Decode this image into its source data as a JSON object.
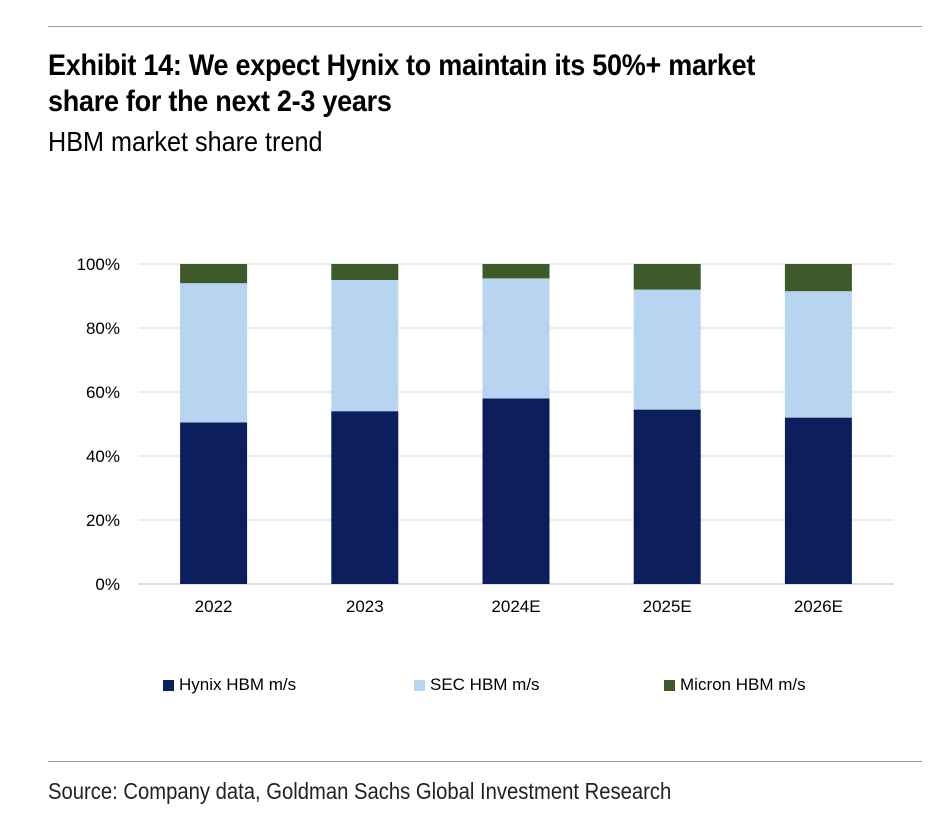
{
  "header": {
    "title": "Exhibit 14: We expect Hynix to maintain its 50%+ market share for the next 2-3 years",
    "subtitle": "HBM market share trend"
  },
  "footer": {
    "source": "Source: Company data, Goldman Sachs Global Investment Research"
  },
  "chart_data": {
    "type": "bar",
    "stacked": true,
    "title": "HBM market share trend",
    "xlabel": "",
    "ylabel": "",
    "ylim": [
      0,
      100
    ],
    "yticks": [
      "0%",
      "20%",
      "40%",
      "60%",
      "80%",
      "100%"
    ],
    "categories": [
      "2022",
      "2023",
      "2024E",
      "2025E",
      "2026E"
    ],
    "series": [
      {
        "name": "Hynix HBM m/s",
        "color": "#0c1f5c",
        "values": [
          50.5,
          54,
          58,
          54.5,
          52
        ]
      },
      {
        "name": "SEC HBM m/s",
        "color": "#b7d5f0",
        "values": [
          43.5,
          41,
          37.5,
          37.5,
          39.5
        ]
      },
      {
        "name": "Micron HBM m/s",
        "color": "#3f5a2a",
        "values": [
          6,
          5,
          4.5,
          8,
          8.5
        ]
      }
    ],
    "grid": true,
    "legend_position": "bottom"
  }
}
